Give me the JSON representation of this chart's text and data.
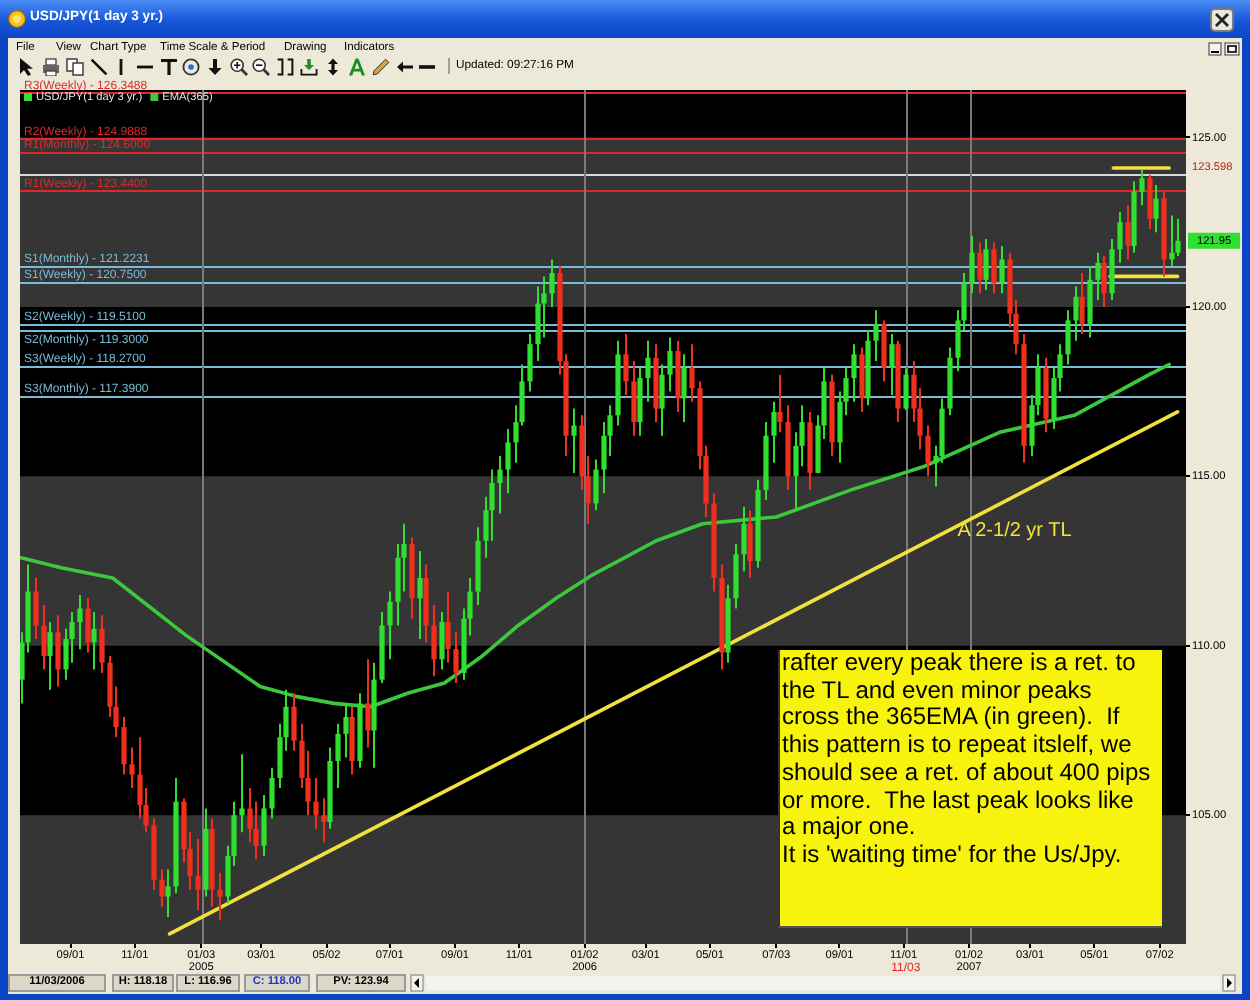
{
  "chart_data": {
    "type": "candlestick",
    "title": "USD/JPY(1 day 3 yr.)",
    "series": [
      {
        "name": "USD/JPY(1 day 3 yr.)",
        "color": "#30e030",
        "x": [
          "2004-07-16",
          "2004-07-23",
          "2004-07-30",
          "2004-08-06",
          "2004-08-13",
          "2004-08-20",
          "2004-08-27",
          "2004-09-03",
          "2004-09-10",
          "2004-09-17",
          "2004-09-24",
          "2004-10-01",
          "2004-10-08",
          "2004-10-15",
          "2004-10-22",
          "2004-10-29",
          "2004-11-05",
          "2004-11-12",
          "2004-11-19",
          "2004-11-26",
          "2004-12-03",
          "2004-12-10",
          "2004-12-17",
          "2004-12-24",
          "2004-12-31",
          "2005-01-07",
          "2005-01-14",
          "2005-01-21",
          "2005-01-28",
          "2005-02-04",
          "2005-02-11",
          "2005-02-18",
          "2005-02-25",
          "2005-03-04",
          "2005-03-11",
          "2005-03-18",
          "2005-03-25",
          "2005-04-01",
          "2005-04-08",
          "2005-04-15",
          "2005-04-22",
          "2005-04-29",
          "2005-05-06",
          "2005-05-13",
          "2005-05-20",
          "2005-05-27",
          "2005-06-03",
          "2005-06-10",
          "2005-06-17",
          "2005-06-24",
          "2005-07-01",
          "2005-07-08",
          "2005-07-15",
          "2005-07-22",
          "2005-07-29",
          "2005-08-05",
          "2005-08-12",
          "2005-08-19",
          "2005-08-26",
          "2005-09-02",
          "2005-09-09",
          "2005-09-16",
          "2005-09-23",
          "2005-09-30",
          "2005-10-07",
          "2005-10-14",
          "2005-10-21",
          "2005-10-28",
          "2005-11-04",
          "2005-11-11",
          "2005-11-18",
          "2005-11-25",
          "2005-12-02",
          "2005-12-09",
          "2005-12-16",
          "2005-12-23",
          "2005-12-30",
          "2006-01-06",
          "2006-01-13",
          "2006-01-20",
          "2006-01-27",
          "2006-02-03",
          "2006-02-10",
          "2006-02-17",
          "2006-02-24",
          "2006-03-03",
          "2006-03-10",
          "2006-03-17",
          "2006-03-24",
          "2006-03-31",
          "2006-04-07",
          "2006-04-14",
          "2006-04-21",
          "2006-04-28",
          "2006-05-05",
          "2006-05-12",
          "2006-05-19",
          "2006-05-26",
          "2006-06-02",
          "2006-06-09",
          "2006-06-16",
          "2006-06-23",
          "2006-06-30",
          "2006-07-07",
          "2006-07-14",
          "2006-07-21",
          "2006-07-28",
          "2006-08-04",
          "2006-08-11",
          "2006-08-18",
          "2006-08-25",
          "2006-09-01",
          "2006-09-08",
          "2006-09-15",
          "2006-09-22",
          "2006-09-29",
          "2006-10-06",
          "2006-10-13",
          "2006-10-20",
          "2006-10-27",
          "2006-11-03",
          "2006-11-10",
          "2006-11-17",
          "2006-11-24",
          "2006-12-01",
          "2006-12-08",
          "2006-12-15",
          "2006-12-22",
          "2006-12-29",
          "2007-01-05",
          "2007-01-12",
          "2007-01-19",
          "2007-01-26",
          "2007-02-02",
          "2007-02-09",
          "2007-02-16",
          "2007-02-23",
          "2007-03-02",
          "2007-03-09",
          "2007-03-16",
          "2007-03-23",
          "2007-03-30",
          "2007-04-06",
          "2007-04-13",
          "2007-04-20",
          "2007-04-27",
          "2007-05-04",
          "2007-05-11",
          "2007-05-18",
          "2007-05-25",
          "2007-06-01",
          "2007-06-08",
          "2007-06-15",
          "2007-06-22",
          "2007-06-29",
          "2007-07-06",
          "2007-07-13",
          "2007-07-20"
        ],
        "ohlc": [
          [
            109.0,
            110.4,
            108.3,
            110.1
          ],
          [
            110.1,
            112.4,
            109.8,
            111.6
          ],
          [
            111.6,
            112.0,
            110.2,
            110.6
          ],
          [
            110.6,
            111.2,
            109.3,
            109.7
          ],
          [
            109.7,
            110.7,
            108.7,
            110.4
          ],
          [
            110.4,
            110.9,
            108.8,
            109.3
          ],
          [
            109.3,
            110.5,
            109.0,
            110.2
          ],
          [
            110.2,
            111.0,
            109.5,
            110.7
          ],
          [
            110.7,
            111.5,
            109.9,
            111.1
          ],
          [
            111.1,
            111.4,
            109.8,
            110.1
          ],
          [
            110.1,
            111.0,
            109.3,
            110.5
          ],
          [
            110.5,
            110.9,
            109.2,
            109.5
          ],
          [
            109.5,
            109.7,
            107.9,
            108.2
          ],
          [
            108.2,
            108.8,
            107.3,
            107.6
          ],
          [
            107.6,
            107.9,
            106.2,
            106.5
          ],
          [
            106.5,
            107.0,
            105.8,
            106.2
          ],
          [
            106.2,
            107.3,
            104.9,
            105.3
          ],
          [
            105.3,
            105.8,
            104.5,
            104.7
          ],
          [
            104.7,
            104.9,
            102.8,
            103.1
          ],
          [
            103.1,
            103.4,
            102.3,
            102.6
          ],
          [
            102.6,
            103.4,
            102.0,
            102.9
          ],
          [
            102.9,
            106.1,
            102.7,
            105.4
          ],
          [
            105.4,
            105.5,
            103.6,
            104.0
          ],
          [
            104.0,
            104.5,
            102.8,
            103.2
          ],
          [
            103.2,
            104.3,
            102.2,
            102.8
          ],
          [
            102.8,
            105.2,
            102.6,
            104.6
          ],
          [
            104.6,
            104.9,
            102.3,
            102.8
          ],
          [
            102.8,
            103.3,
            101.9,
            102.6
          ],
          [
            102.6,
            104.1,
            102.4,
            103.8
          ],
          [
            103.8,
            105.4,
            103.5,
            105.0
          ],
          [
            105.0,
            106.8,
            104.5,
            105.2
          ],
          [
            105.2,
            105.8,
            104.2,
            104.6
          ],
          [
            104.6,
            105.4,
            103.7,
            104.1
          ],
          [
            104.1,
            105.6,
            103.8,
            105.2
          ],
          [
            105.2,
            106.4,
            104.9,
            106.1
          ],
          [
            106.1,
            107.7,
            105.8,
            107.3
          ],
          [
            107.3,
            108.7,
            106.9,
            108.2
          ],
          [
            108.2,
            108.6,
            106.9,
            107.2
          ],
          [
            107.2,
            107.7,
            105.8,
            106.1
          ],
          [
            106.1,
            106.9,
            105.0,
            105.4
          ],
          [
            105.4,
            106.1,
            104.6,
            105.0
          ],
          [
            105.0,
            105.5,
            104.2,
            104.8
          ],
          [
            104.8,
            107.0,
            104.6,
            106.6
          ],
          [
            106.6,
            107.7,
            105.8,
            107.4
          ],
          [
            107.4,
            108.3,
            106.7,
            107.9
          ],
          [
            107.9,
            108.2,
            106.2,
            106.6
          ],
          [
            106.6,
            108.6,
            106.4,
            108.3
          ],
          [
            108.3,
            109.6,
            107.0,
            107.5
          ],
          [
            107.5,
            109.5,
            106.4,
            109.0
          ],
          [
            109.0,
            111.0,
            108.9,
            110.6
          ],
          [
            110.6,
            111.6,
            109.6,
            111.3
          ],
          [
            111.3,
            113.0,
            110.6,
            112.6
          ],
          [
            112.6,
            113.6,
            111.6,
            113.0
          ],
          [
            113.0,
            113.2,
            110.8,
            111.4
          ],
          [
            111.4,
            112.8,
            110.2,
            112.0
          ],
          [
            112.0,
            112.4,
            110.1,
            110.6
          ],
          [
            110.6,
            111.2,
            109.1,
            109.6
          ],
          [
            109.6,
            111.0,
            109.3,
            110.7
          ],
          [
            110.7,
            111.6,
            109.5,
            109.9
          ],
          [
            109.9,
            110.4,
            108.9,
            109.2
          ],
          [
            109.2,
            111.1,
            109.0,
            110.8
          ],
          [
            110.8,
            112.0,
            110.3,
            111.6
          ],
          [
            111.6,
            113.5,
            111.2,
            113.1
          ],
          [
            113.1,
            114.4,
            112.6,
            114.0
          ],
          [
            114.0,
            115.2,
            113.1,
            114.8
          ],
          [
            114.8,
            115.6,
            113.9,
            115.2
          ],
          [
            115.2,
            116.4,
            114.5,
            116.0
          ],
          [
            116.0,
            117.1,
            115.4,
            116.6
          ],
          [
            116.6,
            118.3,
            116.5,
            117.8
          ],
          [
            117.8,
            119.2,
            117.5,
            118.9
          ],
          [
            118.9,
            120.6,
            118.4,
            120.1
          ],
          [
            120.1,
            120.9,
            119.1,
            120.4
          ],
          [
            120.4,
            121.4,
            120.0,
            121.0
          ],
          [
            121.0,
            121.2,
            118.0,
            118.4
          ],
          [
            118.4,
            118.6,
            115.6,
            116.2
          ],
          [
            116.2,
            117.0,
            115.1,
            116.5
          ],
          [
            116.5,
            116.8,
            114.6,
            115.0
          ],
          [
            115.0,
            115.6,
            113.6,
            114.2
          ],
          [
            114.2,
            115.5,
            114.0,
            115.2
          ],
          [
            115.2,
            116.6,
            114.5,
            116.2
          ],
          [
            116.2,
            117.1,
            115.6,
            116.8
          ],
          [
            116.8,
            119.0,
            116.5,
            118.6
          ],
          [
            118.6,
            119.2,
            117.4,
            117.8
          ],
          [
            117.8,
            118.4,
            116.2,
            116.6
          ],
          [
            116.6,
            118.2,
            116.2,
            117.9
          ],
          [
            117.9,
            119.0,
            117.2,
            118.5
          ],
          [
            118.5,
            118.9,
            116.6,
            117.0
          ],
          [
            117.0,
            118.3,
            116.2,
            118.0
          ],
          [
            118.0,
            119.1,
            117.5,
            118.7
          ],
          [
            118.7,
            119.0,
            116.9,
            117.3
          ],
          [
            117.3,
            118.6,
            116.6,
            118.2
          ],
          [
            118.2,
            118.9,
            117.2,
            117.6
          ],
          [
            117.6,
            117.8,
            115.2,
            115.6
          ],
          [
            115.6,
            115.9,
            113.8,
            114.2
          ],
          [
            114.2,
            114.5,
            111.6,
            112.0
          ],
          [
            112.0,
            112.4,
            109.3,
            109.8
          ],
          [
            109.8,
            111.8,
            109.5,
            111.4
          ],
          [
            111.4,
            113.0,
            111.1,
            112.7
          ],
          [
            112.7,
            114.1,
            112.2,
            113.6
          ],
          [
            113.6,
            114.0,
            112.0,
            112.5
          ],
          [
            112.5,
            114.9,
            112.3,
            114.6
          ],
          [
            114.6,
            116.6,
            114.3,
            116.2
          ],
          [
            116.2,
            117.2,
            115.4,
            116.9
          ],
          [
            116.9,
            118.0,
            116.3,
            116.6
          ],
          [
            116.6,
            117.1,
            114.6,
            115.0
          ],
          [
            115.0,
            116.3,
            114.0,
            115.9
          ],
          [
            115.9,
            117.1,
            115.3,
            116.6
          ],
          [
            116.6,
            116.9,
            114.6,
            115.1
          ],
          [
            115.1,
            116.8,
            115.1,
            116.5
          ],
          [
            116.5,
            118.2,
            116.1,
            117.8
          ],
          [
            117.8,
            118.0,
            115.6,
            116.0
          ],
          [
            116.0,
            117.5,
            115.4,
            117.2
          ],
          [
            117.2,
            118.2,
            116.8,
            117.9
          ],
          [
            117.9,
            118.9,
            117.2,
            118.6
          ],
          [
            118.6,
            118.8,
            116.9,
            117.3
          ],
          [
            117.3,
            119.3,
            117.1,
            119.0
          ],
          [
            119.0,
            119.9,
            118.4,
            119.5
          ],
          [
            119.5,
            119.6,
            117.8,
            118.2
          ],
          [
            118.2,
            119.2,
            117.4,
            118.9
          ],
          [
            118.9,
            119.0,
            116.6,
            117.0
          ],
          [
            117.0,
            118.18,
            116.96,
            118.0
          ],
          [
            118.0,
            118.4,
            116.6,
            117.0
          ],
          [
            117.0,
            117.6,
            115.8,
            116.2
          ],
          [
            116.2,
            116.5,
            115.0,
            115.4
          ],
          [
            115.4,
            115.9,
            114.7,
            115.6
          ],
          [
            115.6,
            117.3,
            115.4,
            117.0
          ],
          [
            117.0,
            118.8,
            116.8,
            118.5
          ],
          [
            118.5,
            119.9,
            118.1,
            119.6
          ],
          [
            119.6,
            121.0,
            119.3,
            120.7
          ],
          [
            120.7,
            122.1,
            120.4,
            121.6
          ],
          [
            121.6,
            121.9,
            120.4,
            120.8
          ],
          [
            120.8,
            122.0,
            120.5,
            121.7
          ],
          [
            121.7,
            121.9,
            120.4,
            120.7
          ],
          [
            120.7,
            121.8,
            120.4,
            121.4
          ],
          [
            121.4,
            121.6,
            119.4,
            119.8
          ],
          [
            119.8,
            120.2,
            118.6,
            118.9
          ],
          [
            118.9,
            119.2,
            115.4,
            115.9
          ],
          [
            115.9,
            117.4,
            115.6,
            117.1
          ],
          [
            117.1,
            118.6,
            116.8,
            118.2
          ],
          [
            118.2,
            118.5,
            116.3,
            116.7
          ],
          [
            116.7,
            118.2,
            116.4,
            117.9
          ],
          [
            117.9,
            118.9,
            117.5,
            118.6
          ],
          [
            118.6,
            119.9,
            118.3,
            119.6
          ],
          [
            119.6,
            120.6,
            119.0,
            120.3
          ],
          [
            120.3,
            121.0,
            119.2,
            119.5
          ],
          [
            119.5,
            121.2,
            119.1,
            120.8
          ],
          [
            120.8,
            121.6,
            120.2,
            121.3
          ],
          [
            121.3,
            121.5,
            120.0,
            120.4
          ],
          [
            120.4,
            122.0,
            120.2,
            121.7
          ],
          [
            121.7,
            122.8,
            121.3,
            122.5
          ],
          [
            122.5,
            123.0,
            121.4,
            121.8
          ],
          [
            121.8,
            123.7,
            121.6,
            123.4
          ],
          [
            123.4,
            124.05,
            123.0,
            123.8
          ],
          [
            123.8,
            123.9,
            122.3,
            122.6
          ],
          [
            122.6,
            123.6,
            122.2,
            123.2
          ],
          [
            123.2,
            123.4,
            120.9,
            121.4
          ],
          [
            121.4,
            122.7,
            121.2,
            121.6
          ],
          [
            121.6,
            122.6,
            121.5,
            121.95
          ]
        ],
        "colors": [
          "#30e030",
          "#30e030",
          "#f0301e",
          "#f0301e",
          "#30e030",
          "#f0301e",
          "#30e030",
          "#30e030",
          "#30e030",
          "#f0301e",
          "#30e030",
          "#f0301e",
          "#f0301e",
          "#f0301e",
          "#f0301e",
          "#f0301e",
          "#f0301e",
          "#f0301e",
          "#f0301e",
          "#f0301e",
          "#30e030",
          "#30e030",
          "#f0301e",
          "#f0301e",
          "#f0301e",
          "#30e030",
          "#f0301e",
          "#f0301e",
          "#30e030",
          "#30e030",
          "#30e030",
          "#f0301e",
          "#f0301e",
          "#30e030",
          "#30e030",
          "#30e030",
          "#30e030",
          "#f0301e",
          "#f0301e",
          "#f0301e",
          "#f0301e",
          "#f0301e",
          "#30e030",
          "#30e030",
          "#30e030",
          "#f0301e",
          "#30e030",
          "#f0301e",
          "#30e030",
          "#30e030",
          "#30e030",
          "#30e030",
          "#30e030",
          "#f0301e",
          "#30e030",
          "#f0301e",
          "#f0301e",
          "#30e030",
          "#f0301e",
          "#f0301e",
          "#30e030",
          "#30e030",
          "#30e030",
          "#30e030",
          "#30e030",
          "#30e030",
          "#30e030",
          "#30e030",
          "#30e030",
          "#30e030",
          "#30e030",
          "#30e030",
          "#30e030",
          "#f0301e",
          "#f0301e",
          "#30e030",
          "#f0301e",
          "#f0301e",
          "#30e030",
          "#30e030",
          "#30e030",
          "#30e030",
          "#f0301e",
          "#f0301e",
          "#30e030",
          "#30e030",
          "#f0301e",
          "#30e030",
          "#30e030",
          "#f0301e",
          "#30e030",
          "#f0301e",
          "#f0301e",
          "#f0301e",
          "#f0301e",
          "#f0301e",
          "#30e030",
          "#30e030",
          "#30e030",
          "#f0301e",
          "#30e030",
          "#30e030",
          "#30e030",
          "#f0301e",
          "#f0301e",
          "#30e030",
          "#30e030",
          "#f0301e",
          "#30e030",
          "#30e030",
          "#f0301e",
          "#30e030",
          "#30e030",
          "#30e030",
          "#f0301e",
          "#30e030",
          "#30e030",
          "#f0301e",
          "#30e030",
          "#f0301e",
          "#30e030",
          "#f0301e",
          "#f0301e",
          "#f0301e",
          "#30e030",
          "#30e030",
          "#30e030",
          "#30e030",
          "#30e030",
          "#30e030",
          "#f0301e",
          "#30e030",
          "#f0301e",
          "#30e030",
          "#f0301e",
          "#f0301e",
          "#f0301e",
          "#30e030",
          "#30e030",
          "#f0301e",
          "#30e030",
          "#30e030",
          "#30e030",
          "#30e030",
          "#f0301e",
          "#30e030",
          "#30e030",
          "#f0301e",
          "#30e030",
          "#30e030",
          "#f0301e",
          "#30e030",
          "#30e030",
          "#f0301e",
          "#30e030",
          "#f0301e",
          "#30e030",
          "#30e030"
        ],
        "value_labels": [
          null,
          null,
          null,
          null,
          null,
          null,
          null,
          null,
          null,
          null,
          null,
          null,
          null,
          null,
          null,
          null,
          null,
          null,
          null,
          null,
          null,
          null,
          null,
          null,
          null,
          null,
          null,
          null,
          null,
          null,
          null,
          null,
          null,
          null,
          null,
          null,
          null,
          null,
          null,
          null,
          null,
          null,
          null,
          null,
          null,
          null,
          null,
          null,
          null,
          null,
          null,
          null,
          null,
          null,
          null,
          null,
          null,
          null,
          null,
          null,
          null,
          null,
          null,
          null,
          null,
          null,
          null,
          null,
          null,
          null,
          null,
          null,
          null,
          null,
          null,
          null,
          null,
          null,
          null,
          null,
          null,
          null,
          null,
          null,
          null,
          null,
          null,
          null,
          null,
          null,
          null,
          null,
          null,
          null,
          null,
          null,
          null,
          null,
          null,
          null,
          null,
          null,
          null,
          null,
          null,
          null,
          null,
          null,
          null,
          null,
          null,
          null,
          null,
          null,
          null,
          null,
          null,
          null,
          null,
          null,
          null,
          null,
          null,
          null,
          null,
          null,
          null,
          null,
          null,
          null,
          null,
          null,
          null,
          null,
          null,
          null,
          null,
          null,
          null,
          null,
          null,
          null,
          null,
          null,
          null,
          null,
          null,
          null,
          null,
          null,
          null,
          null,
          null,
          null,
          null,
          null,
          null,
          "121.95"
        ]
      },
      {
        "name": "EMA(365)",
        "type": "line",
        "color": "#3cc83c",
        "x": [
          "2004-07-16",
          "2004-08-23",
          "2004-10-11",
          "2004-12-20",
          "2005-02-28",
          "2005-04-04",
          "2005-05-09",
          "2005-06-13",
          "2005-07-18",
          "2005-08-22",
          "2005-09-27",
          "2005-10-31",
          "2005-12-06",
          "2006-01-10",
          "2006-03-11",
          "2006-04-24",
          "2006-07-03",
          "2006-09-12",
          "2006-11-21",
          "2007-01-31",
          "2007-04-12",
          "2007-06-22",
          "2007-07-11"
        ],
        "values": [
          112.6,
          112.3,
          112.0,
          110.3,
          108.8,
          108.5,
          108.3,
          108.2,
          108.6,
          108.9,
          109.7,
          110.6,
          111.4,
          112.1,
          113.1,
          113.6,
          113.8,
          114.6,
          115.3,
          116.3,
          116.8,
          118.0,
          118.3
        ]
      },
      {
        "type": "line",
        "color": "#f0e040",
        "x": [
          "2004-12-04",
          "2007-07-19"
        ],
        "values": [
          101.5,
          116.9
        ]
      },
      {
        "type": "line",
        "color": "#f0e040",
        "x": [
          "2007-05-19",
          "2007-07-11"
        ],
        "values": [
          124.1,
          124.1
        ]
      },
      {
        "type": "line",
        "color": "#f0e040",
        "x": [
          "2007-05-16",
          "2007-07-19"
        ],
        "values": [
          120.9,
          120.9
        ]
      }
    ],
    "xlim": [
      "2004-07-15",
      "2007-07-27"
    ],
    "xticks": [
      {
        "value": "2004-09-01",
        "label": "09/01"
      },
      {
        "value": "2004-11-01",
        "label": "11/01"
      },
      {
        "value": "2005-01-03",
        "label": "01/03\n2005"
      },
      {
        "value": "2005-03-01",
        "label": "03/01"
      },
      {
        "value": "2005-05-02",
        "label": "05/02"
      },
      {
        "value": "2005-07-01",
        "label": "07/01"
      },
      {
        "value": "2005-09-01",
        "label": "09/01"
      },
      {
        "value": "2005-11-01",
        "label": "11/01"
      },
      {
        "value": "2006-01-02",
        "label": "01/02\n2006"
      },
      {
        "value": "2006-03-01",
        "label": "03/01"
      },
      {
        "value": "2006-05-01",
        "label": "05/01"
      },
      {
        "value": "2006-07-03",
        "label": "07/03"
      },
      {
        "value": "2006-09-01",
        "label": "09/01"
      },
      {
        "value": "2006-11-01",
        "label": "11/01"
      },
      {
        "value": "2007-01-02",
        "label": "01/02\n2007"
      },
      {
        "value": "2007-03-01",
        "label": "03/01"
      },
      {
        "value": "2007-05-01",
        "label": "05/01"
      },
      {
        "value": "2007-07-02",
        "label": "07/02"
      }
    ],
    "ylim": [
      101.2,
      126.4
    ],
    "yticks": [
      {
        "value": 105,
        "label": "105.00"
      },
      {
        "value": 110,
        "label": "110.00"
      },
      {
        "value": 115,
        "label": "115.00"
      },
      {
        "value": 120,
        "label": "120.00"
      },
      {
        "value": 125,
        "label": "125.00"
      }
    ],
    "bands": [
      {
        "axis": "y",
        "from": 101.2,
        "to": 105,
        "color": "#353535"
      },
      {
        "axis": "y",
        "from": 110,
        "to": 115,
        "color": "#353535"
      },
      {
        "axis": "y",
        "from": 120,
        "to": 125,
        "color": "#353535"
      }
    ],
    "ref_lines": [
      {
        "axis": "y",
        "value": 126.3488,
        "label": "R3(Weekly) - 126.3488",
        "color": "#dc2a2a"
      },
      {
        "axis": "y",
        "value": 124.9888,
        "label": "R2(Weekly) - 124.9888",
        "color": "#dc2a2a"
      },
      {
        "axis": "y",
        "value": 124.6,
        "label": "R1(Monthly) - 124.6000",
        "color": "#dc2a2a"
      },
      {
        "axis": "y",
        "value": 123.94,
        "color": "#d8d8d8"
      },
      {
        "axis": "y",
        "value": 123.44,
        "label": "R1(Weekly) - 123.4400",
        "color": "#dc2a2a"
      },
      {
        "axis": "y",
        "value": 121.2231,
        "label": "S1(Monthly) - 121.2231",
        "color": "#78bcd8"
      },
      {
        "axis": "y",
        "value": 120.75,
        "label": "S1(Weekly) - 120.7500",
        "color": "#78bcd8"
      },
      {
        "axis": "y",
        "value": 119.51,
        "label": "S2(Weekly) - 119.5100",
        "color": "#78bcd8"
      },
      {
        "axis": "y",
        "value": 119.3,
        "label": "S2(Monthly) - 119.3000",
        "color": "#78bcd8"
      },
      {
        "axis": "y",
        "value": 118.27,
        "label": "S3(Weekly) - 118.2700",
        "color": "#78bcd8"
      },
      {
        "axis": "y",
        "value": 117.39,
        "label": "S3(Monthly) - 117.3900",
        "color": "#78bcd8"
      },
      {
        "axis": "x",
        "value": "2005-01-03"
      },
      {
        "axis": "x",
        "value": "2006-01-02"
      },
      {
        "axis": "x",
        "value": "2007-01-02"
      },
      {
        "axis": "x",
        "value": "2006-11-03",
        "label": "11/03"
      }
    ],
    "legend": "top left",
    "annotations": [
      "File",
      "View",
      "Chart Type",
      "Time Scale & Period",
      "Drawing",
      "Indicators",
      "Updated: 09:27:16 PM",
      "11/03/2006",
      "H: 118.18",
      "L: 116.96",
      "C: 118.00",
      "PV: 123.94",
      {
        "text": "A 2-1/2 yr TL",
        "x": "2006-12-22",
        "y": 113.4
      },
      "rafter every peak there is a ret. to\nthe TL and even minor peaks\ncross the 365EMA (in green).  If\nthis pattern is to repeat itslelf, we\nshould see a ret. of about 400 pips\nor more.  The last peak looks like\na major one.\nIt is 'waiting time' for the Us/Jpy.",
      "123.598"
    ]
  }
}
